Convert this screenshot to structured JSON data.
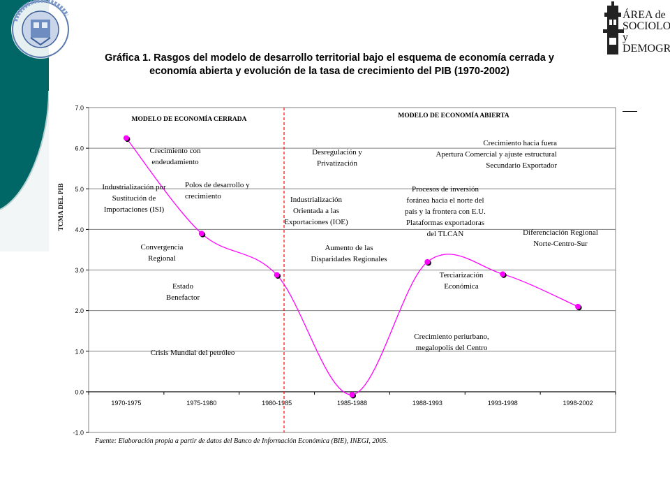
{
  "title_line1": "Gráfica 1. Rasgos del modelo de desarrollo territorial bajo el esquema de economía cerrada y",
  "title_line2": "economía abierta y evolución de la tasa de crecimiento del PIB (1970-2002)",
  "logos": {
    "left_arc_text": "Universidad Autónoma del Estado de Hidalgo",
    "right_text_lines": [
      "ÁREA de",
      "SOCIOLOGÍA",
      "y DEMOGRAFÍA"
    ]
  },
  "colors": {
    "curve": "#ff00ff",
    "marker": "#ff00ff",
    "divider": "#ff0000",
    "band": "#006666",
    "grid": "#808080"
  },
  "source": "Fuente: Elaboración propia a partir de datos del Banco de Información Económica (BIE), INEGI, 2005.",
  "chart_data": {
    "type": "line",
    "categories": [
      "1970-1975",
      "1975-1980",
      "1980-1985",
      "1985-1988",
      "1988-1993",
      "1993-1998",
      "1998-2002"
    ],
    "values": [
      6.25,
      3.9,
      2.88,
      -0.07,
      3.2,
      2.9,
      2.1
    ],
    "ylabel": "TCMA DEL PIB",
    "ylim": [
      -1.0,
      7.0
    ],
    "yticks": [
      "-1.0",
      "0.0",
      "1.0",
      "2.0",
      "3.0",
      "4.0",
      "5.0",
      "6.0",
      "7.0"
    ],
    "grid": true,
    "model_labels": [
      "MODELO DE ECONOMÍA CERRADA",
      "MODELO DE ECONOMÍA ABIERTA"
    ],
    "annotations": [
      [
        "Crecimiento con",
        "endeudamiento"
      ],
      [
        "Industrialización por",
        "Sustitución de",
        "Importaciones (ISI)"
      ],
      [
        "Polos de desarrollo y",
        "crecimiento"
      ],
      [
        "Convergencia",
        "Regional"
      ],
      [
        "Estado",
        "Benefactor"
      ],
      [
        "Crisis Mundial del petróleo"
      ],
      [
        "Desregulación y",
        "Privatización"
      ],
      [
        "Industrialización",
        "Orientada a las",
        "Exportaciones (IOE)"
      ],
      [
        "Aumento de las",
        "Disparidades Regionales"
      ],
      [
        "Crecimiento hacia fuera",
        "Apertura Comercial y ajuste estructural",
        "Secundario Exportador"
      ],
      [
        "Procesos de inversión",
        "foránea hacia el norte del",
        "país y la frontera con E.U.",
        "Plataformas exportadoras",
        "del TLCAN"
      ],
      [
        "Diferenciación Regional",
        "Norte-Centro-Sur"
      ],
      [
        "Terciarización",
        "Económica"
      ],
      [
        "Crecimiento periurbano,",
        "megalopolis del Centro"
      ]
    ]
  }
}
